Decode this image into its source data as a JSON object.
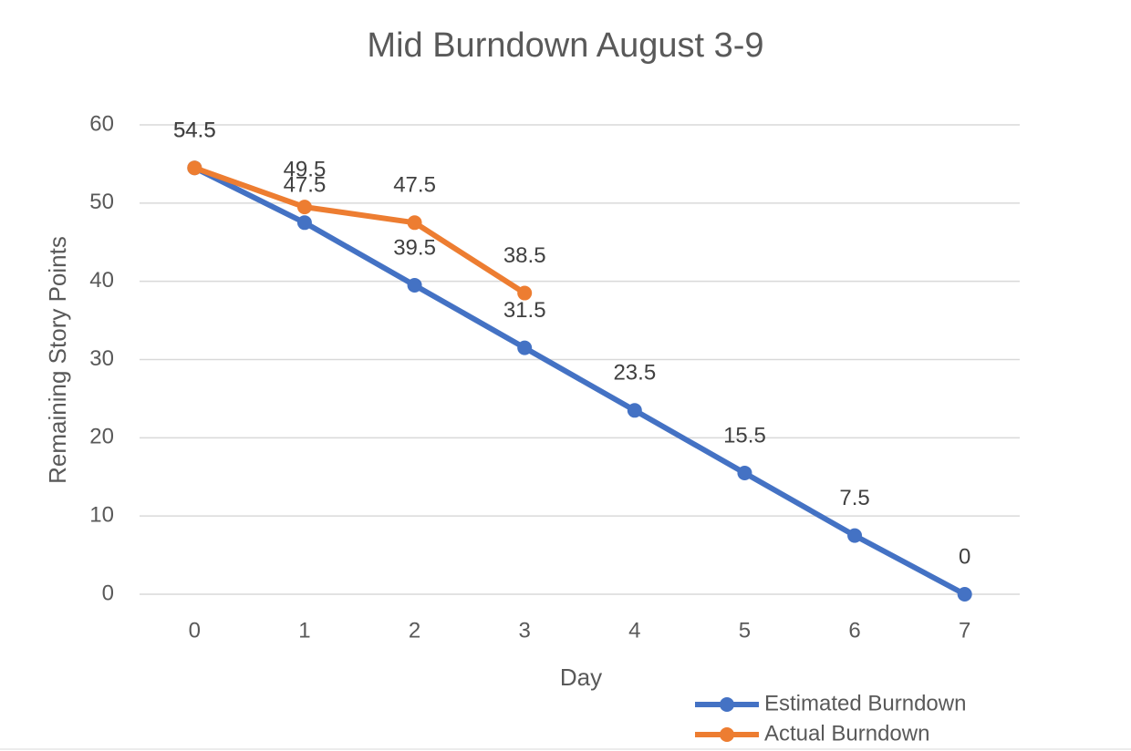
{
  "chart_data": {
    "type": "line",
    "title": "Mid Burndown August 3-9",
    "x_label": "Day",
    "y_label": "Remaining Story Points",
    "categories": [
      "0",
      "1",
      "2",
      "3",
      "4",
      "5",
      "6",
      "7"
    ],
    "series": [
      {
        "name": "Estimated Burndown",
        "color": "#4472c4",
        "values": [
          54.5,
          47.5,
          39.5,
          31.5,
          23.5,
          15.5,
          7.5,
          0
        ]
      },
      {
        "name": "Actual Burndown",
        "color": "#ed7d31",
        "values": [
          54.5,
          49.5,
          47.5,
          38.5,
          null,
          null,
          null,
          null
        ]
      }
    ],
    "ylim": [
      0,
      60
    ],
    "yticks": [
      0,
      10,
      20,
      30,
      40,
      50,
      60
    ],
    "grid": true,
    "legend": "bottom-right"
  }
}
